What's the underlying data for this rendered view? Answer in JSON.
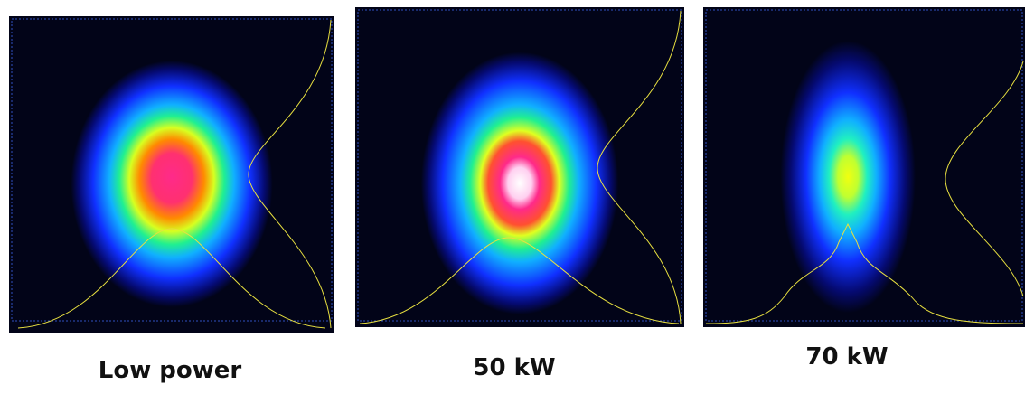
{
  "panels": [
    {
      "label": "Low power"
    },
    {
      "label": "50 kW"
    },
    {
      "label": "70 kW"
    }
  ]
}
